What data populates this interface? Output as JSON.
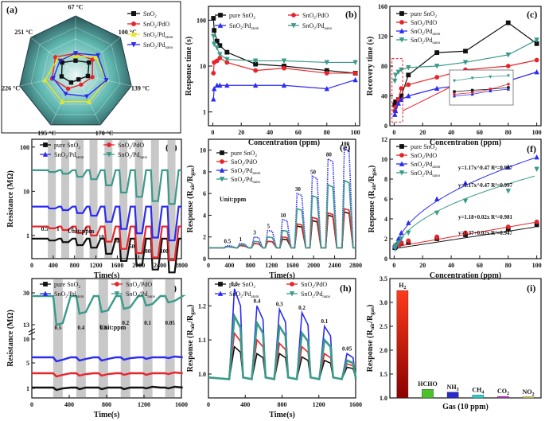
{
  "panels": {
    "a": {
      "label": "(a)",
      "temps": [
        "67 °C",
        "100 °C",
        "139 °C",
        "170 °C",
        "195 °C",
        "226 °C",
        "251 °C"
      ],
      "legend": [
        {
          "text": "SnO",
          "sub": "2",
          "color": "#111111",
          "marker": "square"
        },
        {
          "text": "SnO",
          "sub": "2",
          "tail": "/PdO",
          "color": "#e8242b",
          "marker": "circle"
        },
        {
          "text": "SnO",
          "sub": "2",
          "tail": "/Pd",
          "sub2": "atom",
          "color": "#e8e81a",
          "marker": "triangle"
        },
        {
          "text": "SnO",
          "sub": "2",
          "tail": "/Pd",
          "sub2": "nano",
          "color": "#2b2bf2",
          "marker": "tri-down"
        }
      ],
      "radar_series": [
        {
          "name": "SnO2",
          "color": "#111111",
          "values": [
            0.22,
            0.3,
            0.22,
            0.12,
            0.18,
            0.25,
            0.3
          ]
        },
        {
          "name": "SnO2/PdO",
          "color": "#e8242b",
          "values": [
            0.35,
            0.38,
            0.3,
            0.22,
            0.3,
            0.42,
            0.45
          ]
        },
        {
          "name": "SnO2/Pd_atom",
          "color": "#e8e81a",
          "values": [
            0.3,
            0.45,
            0.55,
            0.55,
            0.55,
            0.55,
            0.4
          ]
        },
        {
          "name": "SnO2/Pd_nano",
          "color": "#2b2bf2",
          "values": [
            0.35,
            0.5,
            0.55,
            0.45,
            0.4,
            0.4,
            0.35
          ]
        }
      ]
    },
    "b": {
      "label": "(b)",
      "ylabel": "Response time (s)",
      "xlabel": "Concentration (ppm)",
      "xticks": [
        "0",
        "20",
        "40",
        "60",
        "80",
        "100"
      ],
      "yticks": [
        "1",
        "10",
        "100"
      ],
      "legend": [
        {
          "text": "pure SnO",
          "sub": "2",
          "color": "#111111"
        },
        {
          "text": "SnO",
          "sub": "2",
          "tail": "/PdO",
          "color": "#e8242b"
        },
        {
          "text": "SnO",
          "sub": "2",
          "tail": "/Pd",
          "sub2": "atom",
          "color": "#2b2bf2"
        },
        {
          "text": "SnO",
          "sub": "2",
          "tail": "/Pd",
          "sub2": "nano",
          "color": "#3a9a8a"
        }
      ]
    },
    "c": {
      "label": "(c)",
      "ylabel": "Recovery time (s)",
      "xlabel": "Concentration (ppm)",
      "xticks": [
        "0",
        "20",
        "40",
        "60",
        "80",
        "100"
      ],
      "yticks": [
        "0",
        "40",
        "80",
        "120",
        "160"
      ],
      "legend": [
        {
          "text": "pure SnO",
          "sub": "2",
          "color": "#111111"
        },
        {
          "text": "SnO",
          "sub": "2",
          "tail": "/PdO",
          "color": "#e8242b"
        },
        {
          "text": "SnO",
          "sub": "2",
          "tail": "/Pd",
          "sub2": "atom",
          "color": "#2b2bf2"
        },
        {
          "text": "SnO",
          "sub": "2",
          "tail": "/Pd",
          "sub2": "nano",
          "color": "#3a9a8a"
        }
      ]
    },
    "d": {
      "label": "(d)",
      "ylabel": "Resistance (MΩ)",
      "xlabel": "Time(s)",
      "xticks": [
        "0",
        "400",
        "800",
        "1200",
        "1600",
        "2000",
        "2400",
        "2800"
      ],
      "yticks": [
        "1",
        "10",
        "100"
      ],
      "unit": "Unit:ppm",
      "conc_labels": [
        "0.5",
        "1",
        "3",
        "5",
        "10",
        "30",
        "50",
        "80",
        "100"
      ],
      "legend": [
        {
          "text": "pure SnO",
          "sub": "2",
          "color": "#111111"
        },
        {
          "text": "SnO",
          "sub": "2",
          "tail": "/PdO",
          "color": "#e8242b"
        },
        {
          "text": "SnO",
          "sub": "2",
          "tail": "/Pd",
          "sub2": "atom",
          "color": "#2b2bf2"
        },
        {
          "text": "SnO",
          "sub": "2",
          "tail": "/Pd",
          "sub2": "nano",
          "color": "#3a9a8a"
        }
      ]
    },
    "e": {
      "label": "(e)",
      "xlabel": "Time(s)",
      "xticks": [
        "0",
        "400",
        "800",
        "1200",
        "1600",
        "2000",
        "2400",
        "2800"
      ],
      "yticks": [
        "0",
        "2",
        "4",
        "6",
        "8",
        "10"
      ],
      "unit": "Unit:ppm",
      "conc_labels": [
        "0.5",
        "1",
        "3",
        "5",
        "10",
        "30",
        "50",
        "80",
        "100"
      ],
      "legend": [
        {
          "text": "pure SnO",
          "sub": "2",
          "color": "#111111"
        },
        {
          "text": "SnO",
          "sub": "2",
          "tail": "/PdO",
          "color": "#e8242b"
        },
        {
          "text": "SnO",
          "sub": "2",
          "tail": "/Pd",
          "sub2": "atom",
          "color": "#2b2bf2"
        },
        {
          "text": "SnO",
          "sub": "2",
          "tail": "/Pd",
          "sub2": "nano",
          "color": "#3a9a8a"
        }
      ]
    },
    "f": {
      "label": "(f)",
      "xlabel": "Concentration (ppm)",
      "xticks": [
        "0",
        "20",
        "40",
        "60",
        "80",
        "100"
      ],
      "yticks": [
        "0",
        "2",
        "4",
        "6",
        "8",
        "10",
        "12"
      ],
      "fits": [
        "y=1.17x^0.47  R²=0.997",
        "y=1.17x^0.47  R²=0.997",
        "y=1.18+0.02x  R²=0.981",
        "y=1.37+0.02x  R²=0.947"
      ],
      "legend": [
        {
          "text": "pure SnO",
          "sub": "2",
          "color": "#111111"
        },
        {
          "text": "SnO",
          "sub": "2",
          "tail": "/PdO",
          "color": "#e8242b"
        },
        {
          "text": "SnO",
          "sub": "2",
          "tail": "/Pd",
          "sub2": "atom",
          "color": "#2b2bf2"
        },
        {
          "text": "SnO",
          "sub": "2",
          "tail": "/Pd",
          "sub2": "nano",
          "color": "#3a9a8a"
        }
      ]
    },
    "g": {
      "label": "(g)",
      "ylabel": "Resistance (MΩ)",
      "xlabel": "Time(s)",
      "xticks": [
        "0",
        "400",
        "800",
        "1200",
        "1600"
      ],
      "yticks": [
        "1",
        "5",
        "10",
        "13",
        "30"
      ],
      "unit": "Unit:ppm",
      "conc_labels": [
        "0.5",
        "0.4",
        "0.3",
        "0.2",
        "0.1",
        "0.05"
      ],
      "legend": [
        {
          "text": "pure SnO",
          "sub": "2",
          "color": "#111111"
        },
        {
          "text": "SnO",
          "sub": "2",
          "tail": "/PdO",
          "color": "#e8242b"
        },
        {
          "text": "SnO",
          "sub": "2",
          "tail": "/Pd",
          "sub2": "atom",
          "color": "#2b2bf2"
        },
        {
          "text": "SnO",
          "sub": "2",
          "tail": "/Pd",
          "sub2": "nano",
          "color": "#3a9a8a"
        }
      ]
    },
    "h": {
      "label": "(h)",
      "xlabel": "Time(s)",
      "xticks": [
        "0",
        "400",
        "800",
        "1200",
        "1600"
      ],
      "yticks": [
        "1.0",
        "1.1",
        "1.2"
      ],
      "conc_labels": [
        "0.5",
        "0.4",
        "0.3",
        "0.2",
        "0.1",
        "0.05"
      ],
      "legend": [
        {
          "text": "pure SnO",
          "sub": "2",
          "color": "#111111"
        },
        {
          "text": "SnO",
          "sub": "2",
          "tail": "/PdO",
          "color": "#e8242b"
        },
        {
          "text": "SnO",
          "sub": "2",
          "tail": "/Pd",
          "sub2": "atom",
          "color": "#2b2bf2"
        },
        {
          "text": "SnO",
          "sub": "2",
          "tail": "/Pd",
          "sub2": "nano",
          "color": "#3a9a8a"
        }
      ]
    },
    "i": {
      "label": "(i)",
      "xlabel": "Gas (10 ppm)",
      "yticks": [
        "1.0",
        "1.5",
        "2.0",
        "2.5",
        "3.0",
        "3.5"
      ]
    }
  },
  "chart_data": [
    {
      "panel": "b",
      "type": "line",
      "title": "",
      "xlabel": "Concentration (ppm)",
      "ylabel": "Response time (s)",
      "xlim": [
        -3,
        103
      ],
      "ylim": [
        0.5,
        200
      ],
      "yscale": "log",
      "x": [
        0.5,
        1,
        3,
        5,
        10,
        30,
        50,
        80,
        100
      ],
      "series": [
        {
          "name": "pure SnO2",
          "color": "#111111",
          "marker": "square",
          "values": [
            110,
            60,
            35,
            28,
            20,
            11,
            10,
            8,
            7
          ]
        },
        {
          "name": "SnO2/PdO",
          "color": "#e8242b",
          "marker": "circle",
          "values": [
            7,
            12,
            13,
            15,
            12,
            8,
            9,
            7,
            7
          ]
        },
        {
          "name": "SnO2/Pd_atom",
          "color": "#2b2bf2",
          "marker": "triangle",
          "values": [
            1.9,
            3.2,
            3.8,
            3.8,
            3.8,
            3.8,
            3.8,
            3.2,
            5
          ]
        },
        {
          "name": "SnO2/Pd_nano",
          "color": "#3a9a8a",
          "marker": "tri-down",
          "values": [
            45,
            30,
            25,
            18,
            14,
            13,
            13,
            12,
            12
          ]
        }
      ]
    },
    {
      "panel": "c",
      "type": "line",
      "title": "",
      "xlabel": "Concentration (ppm)",
      "ylabel": "Recovery time (s)",
      "xlim": [
        -3,
        103
      ],
      "ylim": [
        0,
        160
      ],
      "x": [
        0.5,
        1,
        3,
        5,
        10,
        30,
        50,
        80,
        100
      ],
      "series": [
        {
          "name": "pure SnO2",
          "color": "#111111",
          "marker": "square",
          "values": [
            28,
            32,
            35,
            40,
            68,
            98,
            100,
            138,
            110
          ]
        },
        {
          "name": "SnO2/PdO",
          "color": "#e8242b",
          "marker": "circle",
          "values": [
            20,
            25,
            35,
            50,
            55,
            65,
            75,
            80,
            88
          ]
        },
        {
          "name": "SnO2/Pd_atom",
          "color": "#2b2bf2",
          "marker": "triangle",
          "values": [
            15,
            20,
            30,
            35,
            40,
            50,
            55,
            60,
            72
          ]
        },
        {
          "name": "SnO2/Pd_nano",
          "color": "#3a9a8a",
          "marker": "tri-down",
          "values": [
            60,
            68,
            72,
            75,
            78,
            80,
            85,
            95,
            115
          ]
        }
      ]
    },
    {
      "panel": "d",
      "type": "line",
      "title": "",
      "xlabel": "Time(s)",
      "ylabel": "Resistance (MΩ)",
      "xlim": [
        0,
        2800
      ],
      "ylim": [
        0.3,
        150
      ],
      "yscale": "log",
      "baselines": [
        {
          "name": "pure SnO2",
          "color": "#111111",
          "value": 0.85
        },
        {
          "name": "SnO2/PdO",
          "color": "#e8242b",
          "value": 1.6
        },
        {
          "name": "SnO2/Pd_atom",
          "color": "#2b2bf2",
          "value": 4.5
        },
        {
          "name": "SnO2/Pd_nano",
          "color": "#3a9a8a",
          "value": 30
        }
      ],
      "pulse_response": [
        1.1,
        1.2,
        1.4,
        1.6,
        2.2,
        3.2,
        4.0,
        5.0,
        5.8
      ]
    },
    {
      "panel": "e",
      "type": "line",
      "title": "",
      "xlabel": "Time(s)",
      "ylabel": "Response (Rair/Rgas)",
      "xlim": [
        0,
        2800
      ],
      "ylim": [
        0,
        11
      ],
      "pulses_x": [
        300,
        550,
        820,
        1080,
        1360,
        1640,
        1930,
        2230,
        2540
      ],
      "series": [
        {
          "name": "pure SnO2",
          "color": "#111111",
          "values": [
            1.1,
            1.2,
            1.4,
            1.6,
            1.8,
            3.0,
            3.5,
            4.0,
            4.3
          ]
        },
        {
          "name": "SnO2/PdO",
          "color": "#e8242b",
          "values": [
            1.1,
            1.2,
            1.4,
            1.6,
            2.0,
            3.2,
            3.8,
            4.2,
            4.6
          ]
        },
        {
          "name": "SnO2/Pd_atom",
          "color": "#2b2bf2",
          "values": [
            1.2,
            1.4,
            2.0,
            2.6,
            3.6,
            6.0,
            7.6,
            9.2,
            10.2
          ]
        },
        {
          "name": "SnO2/Pd_nano",
          "color": "#3a9a8a",
          "values": [
            1.1,
            1.3,
            1.6,
            2.0,
            2.6,
            4.6,
            5.8,
            6.8,
            7.2
          ]
        }
      ]
    },
    {
      "panel": "f",
      "type": "scatter",
      "title": "",
      "xlabel": "Concentration (ppm)",
      "ylabel": "Response (Rair/Rgas)",
      "xlim": [
        -3,
        103
      ],
      "ylim": [
        0,
        12
      ],
      "x": [
        0.5,
        1,
        3,
        5,
        10,
        30,
        50,
        80,
        100
      ],
      "series": [
        {
          "name": "pure SnO2",
          "color": "#111111",
          "values": [
            1.1,
            1.2,
            1.4,
            1.5,
            1.6,
            2.0,
            2.4,
            3.0,
            3.4
          ]
        },
        {
          "name": "SnO2/PdO",
          "color": "#e8242b",
          "values": [
            1.2,
            1.3,
            1.4,
            1.6,
            1.8,
            2.2,
            2.6,
            3.2,
            3.7
          ]
        },
        {
          "name": "SnO2/Pd_atom",
          "color": "#2b2bf2",
          "values": [
            1.2,
            1.4,
            2.0,
            2.6,
            3.6,
            6.0,
            7.6,
            9.2,
            10.2
          ]
        },
        {
          "name": "SnO2/Pd_nano",
          "color": "#3a9a8a",
          "values": [
            1.1,
            1.3,
            1.6,
            2.0,
            2.6,
            4.6,
            5.8,
            6.8,
            9.0
          ]
        }
      ]
    },
    {
      "panel": "g",
      "type": "line",
      "title": "",
      "xlabel": "Time(s)",
      "ylabel": "Resistance (MΩ)",
      "xlim": [
        0,
        1750
      ],
      "pulses_x": [
        250,
        520,
        780,
        1040,
        1300,
        1560
      ],
      "baselines": [
        {
          "name": "pure SnO2",
          "color": "#111111",
          "value": 1.0
        },
        {
          "name": "SnO2/PdO",
          "color": "#e8242b",
          "value": 2.5
        },
        {
          "name": "SnO2/Pd_atom",
          "color": "#2b2bf2",
          "value": 5.5
        },
        {
          "name": "SnO2/Pd_nano",
          "color": "#3a9a8a",
          "value": 29
        }
      ]
    },
    {
      "panel": "h",
      "type": "line",
      "title": "",
      "xlabel": "Time(s)",
      "ylabel": "Response (Rair/Rgas)",
      "xlim": [
        0,
        1700
      ],
      "ylim": [
        0.93,
        1.28
      ],
      "pulses_x": [
        300,
        560,
        820,
        1080,
        1340,
        1600
      ],
      "series": [
        {
          "name": "pure SnO2",
          "color": "#111111",
          "values": [
            1.08,
            1.06,
            1.06,
            1.05,
            1.04,
            1.02
          ]
        },
        {
          "name": "SnO2/PdO",
          "color": "#e8242b",
          "values": [
            1.12,
            1.1,
            1.09,
            1.08,
            1.06,
            1.03
          ]
        },
        {
          "name": "SnO2/Pd_atom",
          "color": "#2b2bf2",
          "values": [
            1.25,
            1.2,
            1.19,
            1.18,
            1.14,
            1.06
          ]
        },
        {
          "name": "SnO2/Pd_nano",
          "color": "#3a9a8a",
          "values": [
            1.17,
            1.15,
            1.14,
            1.12,
            1.1,
            1.04
          ]
        }
      ]
    },
    {
      "panel": "i",
      "type": "bar",
      "title": "",
      "xlabel": "Gas (10 ppm)",
      "ylabel": "Response (Rair/Rgas)",
      "ylim": [
        1.0,
        3.5
      ],
      "categories": [
        "H2",
        "HCHO",
        "NH3",
        "CH4",
        "CO2",
        "NO2"
      ],
      "values": [
        3.25,
        1.18,
        1.12,
        1.06,
        1.03,
        1.02
      ],
      "colors": [
        "#e63a22",
        "#4cc22a",
        "#2a2ac8",
        "#2ad0d0",
        "#c82ac8",
        "#d0d02a"
      ]
    }
  ]
}
